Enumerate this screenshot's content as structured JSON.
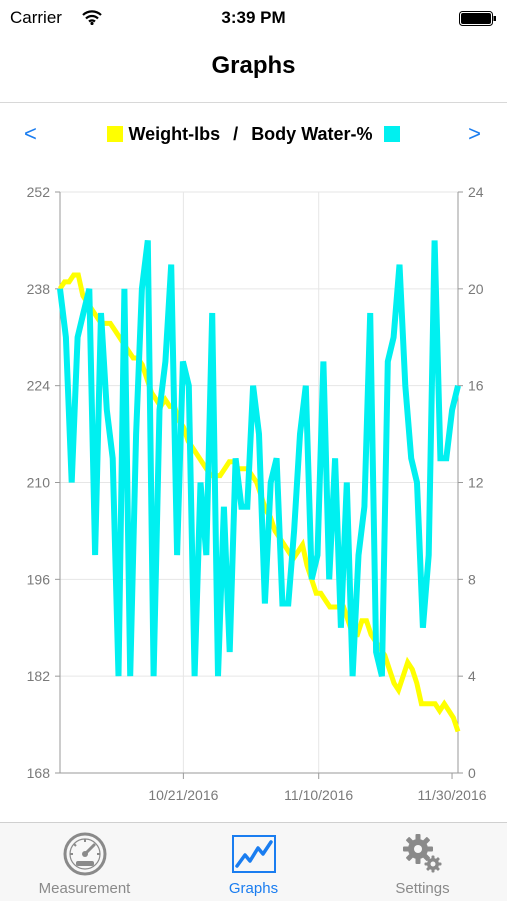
{
  "status_bar": {
    "carrier": "Carrier",
    "time": "3:39 PM"
  },
  "nav": {
    "title": "Graphs"
  },
  "chart_nav": {
    "prev_glyph": "<",
    "next_glyph": ">"
  },
  "tabs": [
    {
      "label": "Measurement",
      "icon": "speedometer-icon",
      "active": false
    },
    {
      "label": "Graphs",
      "icon": "graph-line-icon",
      "active": true
    },
    {
      "label": "Settings",
      "icon": "gears-icon",
      "active": false
    }
  ],
  "colors": {
    "accent": "#1a7df0",
    "weight": "#ffff00",
    "water": "#00f0f0",
    "grid": "#e6e6e6",
    "axis": "#9a9a9a",
    "tick_text": "#7a7a7a"
  },
  "chart_data": {
    "type": "line",
    "legend": {
      "left": "Weight-lbs",
      "separator": "/",
      "right": "Body Water-%"
    },
    "x_ticks": [
      "10/21/2016",
      "11/10/2016",
      "11/30/2016"
    ],
    "y_left": {
      "range": [
        168,
        252
      ],
      "ticks": [
        168,
        182,
        196,
        210,
        224,
        238,
        252
      ]
    },
    "y_right": {
      "range": [
        0,
        24
      ],
      "ticks": [
        0,
        4,
        8,
        12,
        16,
        20,
        24
      ]
    },
    "grid": true,
    "series": [
      {
        "name": "Weight-lbs",
        "axis": "left",
        "values": [
          238,
          239,
          239,
          240,
          240,
          237,
          236,
          235,
          234,
          233,
          233,
          233,
          232,
          231,
          230,
          229,
          228,
          228,
          227,
          225,
          223,
          222,
          221,
          222,
          221,
          221,
          219,
          218,
          216,
          215,
          214,
          213,
          212,
          211,
          211,
          211,
          212,
          213,
          213,
          212,
          212,
          212,
          211,
          210,
          208,
          206,
          205,
          203,
          202,
          201,
          200,
          199,
          200,
          201,
          198,
          196,
          194,
          194,
          193,
          192,
          192,
          192,
          192,
          190,
          188,
          188,
          190,
          190,
          188,
          187,
          186,
          185,
          183,
          181,
          180,
          182,
          184,
          183,
          181,
          178,
          178,
          178,
          178,
          177,
          178,
          177,
          176,
          174
        ]
      },
      {
        "name": "Body Water-%",
        "axis": "right",
        "values": [
          20,
          18,
          12,
          18,
          19,
          20,
          9,
          19,
          15,
          13,
          4,
          20,
          4,
          14,
          20,
          22,
          4,
          15,
          17,
          21,
          9,
          17,
          16,
          4,
          12,
          9,
          19,
          4,
          11,
          5,
          13,
          11,
          11,
          16,
          14,
          7,
          12,
          13,
          7,
          7,
          10,
          14,
          16,
          8,
          9,
          17,
          8,
          13,
          6,
          12,
          4,
          9,
          11,
          19,
          5,
          4,
          17,
          18,
          21,
          16,
          13,
          12,
          6,
          9,
          22,
          13,
          13,
          15,
          16
        ]
      }
    ]
  }
}
